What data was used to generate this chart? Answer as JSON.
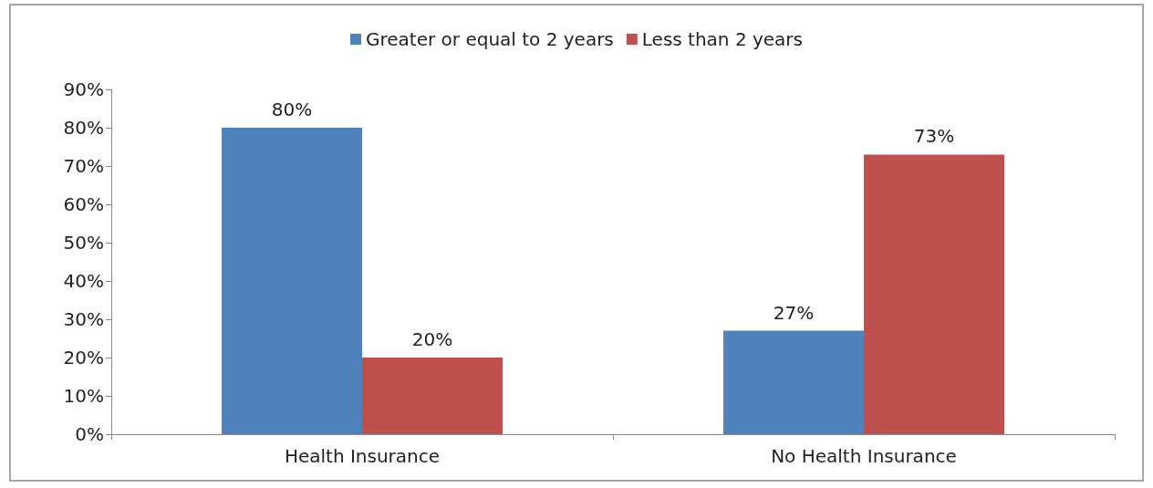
{
  "chart_data": {
    "type": "bar",
    "categories": [
      "Health Insurance",
      "No Health Insurance"
    ],
    "series": [
      {
        "name": "Greater or equal to 2 years",
        "color": "#4f81bd",
        "values": [
          80,
          27
        ],
        "value_labels": [
          "80%",
          "27%"
        ]
      },
      {
        "name": "Less than 2 years",
        "color": "#c0504d",
        "values": [
          20,
          73
        ],
        "value_labels": [
          "20%",
          "73%"
        ]
      }
    ],
    "ylim": [
      0,
      90
    ],
    "yticks": [
      {
        "value": 0,
        "label": "0%"
      },
      {
        "value": 10,
        "label": "10%"
      },
      {
        "value": 20,
        "label": "20%"
      },
      {
        "value": 30,
        "label": "30%"
      },
      {
        "value": 40,
        "label": "40%"
      },
      {
        "value": 50,
        "label": "50%"
      },
      {
        "value": 60,
        "label": "60%"
      },
      {
        "value": 70,
        "label": "70%"
      },
      {
        "value": 80,
        "label": "80%"
      },
      {
        "value": 90,
        "label": "90%"
      }
    ],
    "grid": false,
    "legend": "top"
  }
}
